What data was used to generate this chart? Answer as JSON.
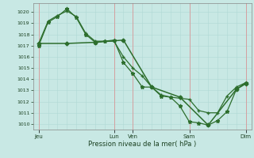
{
  "title": "Pression niveau de la mer( hPa )",
  "bg_color": "#c8e8e4",
  "line_color": "#2d6e2d",
  "ylim": [
    1009.5,
    1020.8
  ],
  "yticks": [
    1010,
    1011,
    1012,
    1013,
    1014,
    1015,
    1016,
    1017,
    1018,
    1019,
    1020
  ],
  "xtick_major_positions": [
    0,
    4.0,
    5.0,
    8.0,
    11.0
  ],
  "xtick_major_labels": [
    "Jeu",
    "Lun",
    "Ven",
    "Sam",
    "Dim"
  ],
  "vline_positions": [
    0,
    4.0,
    5.0,
    8.0,
    11.0
  ],
  "xlim": [
    -0.3,
    11.3
  ],
  "line1_x": [
    0,
    0.5,
    1.0,
    1.5,
    2.0,
    2.5,
    3.0,
    3.5,
    4.0,
    4.5,
    5.0,
    5.5,
    6.0,
    6.5,
    7.0,
    7.5,
    8.0,
    8.5,
    9.0,
    9.5,
    10.0,
    10.5,
    11.0
  ],
  "line1_y": [
    1017.0,
    1019.1,
    1019.6,
    1020.3,
    1019.5,
    1018.0,
    1017.3,
    1017.4,
    1017.5,
    1015.5,
    1014.5,
    1013.3,
    1013.3,
    1012.5,
    1012.4,
    1011.6,
    1010.2,
    1010.1,
    1009.9,
    1010.3,
    1011.1,
    1013.1,
    1013.7
  ],
  "line2_x": [
    0,
    0.5,
    1.0,
    1.5,
    2.0,
    2.5,
    3.0,
    3.5,
    4.0,
    4.5,
    5.0,
    5.5,
    6.0,
    6.5,
    7.0,
    7.5,
    8.0,
    8.5,
    9.0,
    9.5,
    10.0,
    10.5,
    11.0
  ],
  "line2_y": [
    1017.2,
    1019.2,
    1019.7,
    1020.1,
    1019.6,
    1018.1,
    1017.4,
    1017.4,
    1017.4,
    1016.0,
    1015.0,
    1014.3,
    1013.3,
    1012.6,
    1012.4,
    1012.3,
    1012.2,
    1011.2,
    1011.0,
    1011.0,
    1012.5,
    1013.3,
    1013.7
  ],
  "line3_x": [
    0,
    1.5,
    3.0,
    4.5,
    6.0,
    7.5,
    9.0,
    10.5,
    11.0
  ],
  "line3_y": [
    1017.2,
    1017.2,
    1017.3,
    1017.5,
    1013.3,
    1012.4,
    1009.9,
    1013.1,
    1013.6
  ]
}
